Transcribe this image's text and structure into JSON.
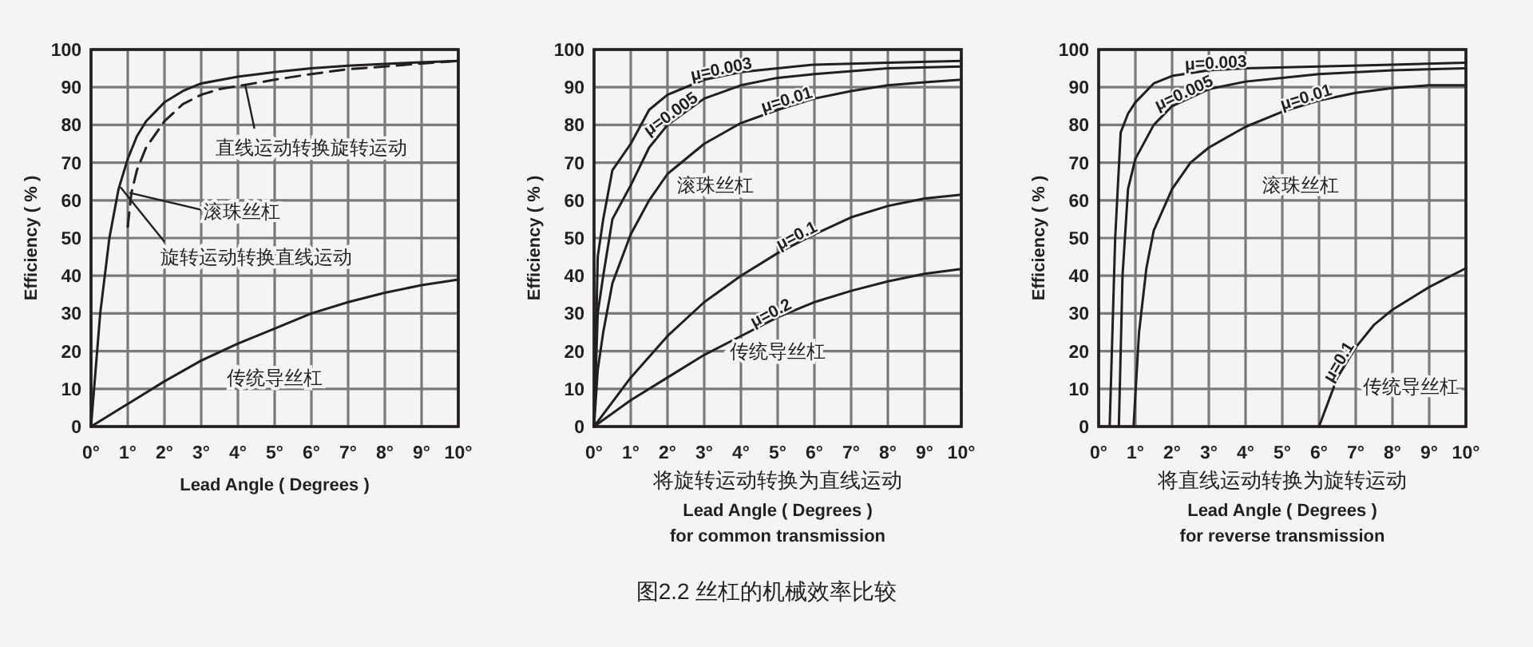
{
  "chart_data": [
    {
      "type": "line",
      "ylabel": "Efficiency ( % )",
      "xlabel": "Lead Angle ( Degrees )",
      "xlim": [
        0,
        10
      ],
      "ylim": [
        0,
        100
      ],
      "grid": true,
      "legend": false,
      "xticks": [
        {
          "value": 0,
          "label": "0°"
        },
        {
          "value": 1,
          "label": "1°"
        },
        {
          "value": 2,
          "label": "2°"
        },
        {
          "value": 3,
          "label": "3°"
        },
        {
          "value": 4,
          "label": "4°"
        },
        {
          "value": 5,
          "label": "5°"
        },
        {
          "value": 6,
          "label": "6°"
        },
        {
          "value": 7,
          "label": "7°"
        },
        {
          "value": 8,
          "label": "8°"
        },
        {
          "value": 9,
          "label": "9°"
        },
        {
          "value": 10,
          "label": "10°"
        }
      ],
      "yticks": [
        0,
        10,
        20,
        30,
        40,
        50,
        60,
        70,
        80,
        90,
        100
      ],
      "annotations": [
        {
          "text": "直线运动转换旋转运动",
          "x": 4.2,
          "y": 90.5
        },
        {
          "text": "滚珠丝杠",
          "x": 1.05,
          "y": 62
        },
        {
          "text": "旋转运动转换直线运动",
          "x": 0.8,
          "y": 63.5
        },
        "传统导丝杠"
      ],
      "series": [
        {
          "color": "#231f20",
          "line_style": "solid",
          "x": [
            0,
            0.25,
            0.5,
            0.75,
            1,
            1.25,
            1.5,
            2,
            2.5,
            3,
            4,
            5,
            6,
            7,
            8,
            9,
            10
          ],
          "values": [
            0,
            30,
            50,
            63,
            71,
            77,
            81,
            86,
            89,
            91,
            92.8,
            94,
            95,
            95.7,
            96.2,
            96.6,
            97
          ]
        },
        {
          "color": "#231f20",
          "line_style": "dashed",
          "x": [
            1,
            1.1,
            1.25,
            1.5,
            2,
            2.5,
            3,
            3.5,
            4,
            5,
            6,
            7,
            8,
            9,
            10
          ],
          "values": [
            53,
            62,
            68,
            74,
            81,
            85.5,
            88,
            89.5,
            90.3,
            92,
            93.5,
            94.8,
            95.5,
            96.3,
            97
          ]
        },
        {
          "color": "#231f20",
          "line_style": "solid",
          "x": [
            0,
            1,
            2,
            3,
            4,
            5,
            6,
            7,
            8,
            9,
            10
          ],
          "values": [
            0,
            6,
            12,
            17.5,
            22,
            26,
            30,
            33,
            35.5,
            37.5,
            39
          ]
        }
      ]
    },
    {
      "type": "line",
      "ylabel": "Efficiency ( % )",
      "xlabel": "将旋转运动转换为直线运动\nLead Angle ( Degrees )\nfor common transmission",
      "xlim": [
        0,
        10
      ],
      "ylim": [
        0,
        100
      ],
      "grid": true,
      "legend": false,
      "xticks": [
        {
          "value": 0,
          "label": "0°"
        },
        {
          "value": 1,
          "label": "1°"
        },
        {
          "value": 2,
          "label": "2°"
        },
        {
          "value": 3,
          "label": "3°"
        },
        {
          "value": 4,
          "label": "4°"
        },
        {
          "value": 5,
          "label": "5°"
        },
        {
          "value": 6,
          "label": "6°"
        },
        {
          "value": 7,
          "label": "7°"
        },
        {
          "value": 8,
          "label": "8°"
        },
        {
          "value": 9,
          "label": "9°"
        },
        {
          "value": 10,
          "label": "10°"
        }
      ],
      "yticks": [
        0,
        10,
        20,
        30,
        40,
        50,
        60,
        70,
        80,
        90,
        100
      ],
      "annotations": [
        "滚珠丝杠",
        "传统导丝杠",
        "图2.2 丝杠的机械效率比较"
      ],
      "series": [
        {
          "name": "μ=0.003",
          "color": "#231f20",
          "x": [
            0,
            0.1,
            0.25,
            0.5,
            1,
            1.5,
            2,
            3,
            4,
            5,
            6,
            8,
            10
          ],
          "values": [
            0,
            45,
            55,
            68,
            75,
            84,
            88,
            92,
            94,
            95,
            96,
            96.5,
            97
          ]
        },
        {
          "name": "μ=0.005",
          "color": "#231f20",
          "x": [
            0,
            0.1,
            0.25,
            0.5,
            1,
            1.5,
            2,
            3,
            4,
            5,
            6,
            8,
            10
          ],
          "values": [
            0,
            30,
            40,
            55,
            64,
            74,
            80,
            87,
            90.5,
            92.5,
            93.5,
            95,
            95.5
          ]
        },
        {
          "name": "μ=0.01",
          "color": "#231f20",
          "x": [
            0,
            0.1,
            0.25,
            0.5,
            1,
            1.5,
            2,
            3,
            4,
            5,
            6,
            7,
            8,
            9,
            10
          ],
          "values": [
            0,
            15,
            25,
            38,
            51,
            60,
            67,
            75,
            80.5,
            84,
            87,
            89,
            90.5,
            91.3,
            92
          ]
        },
        {
          "name": "μ=0.1",
          "color": "#231f20",
          "x": [
            0,
            1,
            2,
            3,
            4,
            5,
            6,
            7,
            8,
            9,
            10
          ],
          "values": [
            0,
            13,
            24,
            33,
            40,
            46,
            51,
            55.5,
            58.5,
            60.5,
            61.5
          ]
        },
        {
          "name": "μ=0.2",
          "color": "#231f20",
          "x": [
            0,
            1,
            2,
            3,
            4,
            5,
            6,
            7,
            8,
            9,
            10
          ],
          "values": [
            0,
            7,
            13,
            19,
            24,
            29,
            33,
            36,
            38.5,
            40.5,
            41.8
          ]
        }
      ]
    },
    {
      "type": "line",
      "ylabel": "Efficiency ( % )",
      "xlabel": "将直线运动转换为旋转运动\nLead Angle ( Degrees )\nfor reverse transmission",
      "xlim": [
        0,
        10
      ],
      "ylim": [
        0,
        100
      ],
      "grid": true,
      "legend": false,
      "xticks": [
        {
          "value": 0,
          "label": "0°"
        },
        {
          "value": 1,
          "label": "1°"
        },
        {
          "value": 2,
          "label": "2°"
        },
        {
          "value": 3,
          "label": "3°"
        },
        {
          "value": 4,
          "label": "4°"
        },
        {
          "value": 5,
          "label": "5°"
        },
        {
          "value": 6,
          "label": "6°"
        },
        {
          "value": 7,
          "label": "7°"
        },
        {
          "value": 8,
          "label": "8°"
        },
        {
          "value": 9,
          "label": "9°"
        },
        {
          "value": 10,
          "label": "10°"
        }
      ],
      "yticks": [
        0,
        10,
        20,
        30,
        40,
        50,
        60,
        70,
        80,
        90,
        100
      ],
      "annotations": [
        "滚珠丝杠",
        "传统导丝杠"
      ],
      "series": [
        {
          "name": "μ=0.003",
          "color": "#231f20",
          "x": [
            0.3,
            0.45,
            0.6,
            0.8,
            1,
            1.5,
            2,
            3,
            4,
            6,
            8,
            10
          ],
          "values": [
            0,
            50,
            78,
            83,
            86,
            91,
            93,
            94.5,
            95,
            95.5,
            96,
            96.5
          ]
        },
        {
          "name": "μ=0.005",
          "color": "#231f20",
          "x": [
            0.55,
            0.65,
            0.8,
            1,
            1.5,
            2,
            3,
            4,
            5,
            6,
            8,
            10
          ],
          "values": [
            0,
            40,
            63,
            71,
            80,
            85,
            89.5,
            91.5,
            92.5,
            93.5,
            94.5,
            95
          ]
        },
        {
          "name": "μ=0.01",
          "color": "#231f20",
          "x": [
            0.95,
            1.1,
            1.3,
            1.5,
            2,
            2.5,
            3,
            4,
            5,
            6,
            7,
            8,
            9,
            10
          ],
          "values": [
            0,
            25,
            42,
            52,
            63,
            70,
            74,
            79.5,
            83.5,
            86.5,
            88.5,
            89.8,
            90.5,
            90.5
          ]
        },
        {
          "name": "μ=0.1",
          "color": "#231f20",
          "x": [
            6,
            6.5,
            7,
            7.5,
            8,
            9,
            10
          ],
          "values": [
            0,
            13,
            21,
            27,
            31,
            37,
            42
          ]
        }
      ]
    }
  ]
}
